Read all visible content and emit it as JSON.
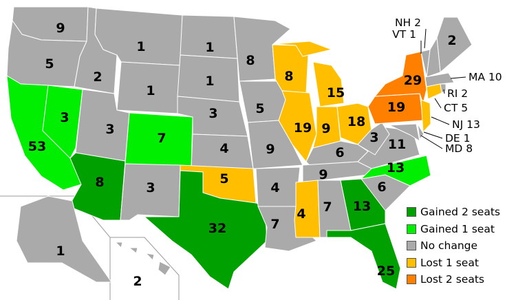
{
  "colors": {
    "gained2": "#00a000",
    "gained1": "#00ee00",
    "nochange": "#aaaaaa",
    "lost1": "#ffbf00",
    "lost2": "#ff8000"
  },
  "legend": [
    {
      "key": "gained2",
      "label": "Gained 2 seats"
    },
    {
      "key": "gained1",
      "label": "Gained 1 seat"
    },
    {
      "key": "nochange",
      "label": "No change"
    },
    {
      "key": "lost1",
      "label": "Lost 1 seat"
    },
    {
      "key": "lost2",
      "label": "Lost 2 seats"
    }
  ],
  "states": [
    {
      "id": "WA",
      "seats": "9",
      "change": "nochange"
    },
    {
      "id": "OR",
      "seats": "5",
      "change": "nochange"
    },
    {
      "id": "CA",
      "seats": "53",
      "change": "gained1"
    },
    {
      "id": "NV",
      "seats": "3",
      "change": "gained1"
    },
    {
      "id": "ID",
      "seats": "2",
      "change": "nochange"
    },
    {
      "id": "MT",
      "seats": "1",
      "change": "nochange"
    },
    {
      "id": "WY",
      "seats": "1",
      "change": "nochange"
    },
    {
      "id": "UT",
      "seats": "3",
      "change": "nochange"
    },
    {
      "id": "CO",
      "seats": "7",
      "change": "gained1"
    },
    {
      "id": "AZ",
      "seats": "8",
      "change": "gained2"
    },
    {
      "id": "NM",
      "seats": "3",
      "change": "nochange"
    },
    {
      "id": "ND",
      "seats": "1",
      "change": "nochange"
    },
    {
      "id": "SD",
      "seats": "1",
      "change": "nochange"
    },
    {
      "id": "NE",
      "seats": "3",
      "change": "nochange"
    },
    {
      "id": "KS",
      "seats": "4",
      "change": "nochange"
    },
    {
      "id": "OK",
      "seats": "5",
      "change": "lost1"
    },
    {
      "id": "TX",
      "seats": "32",
      "change": "gained2"
    },
    {
      "id": "MN",
      "seats": "8",
      "change": "nochange"
    },
    {
      "id": "IA",
      "seats": "5",
      "change": "nochange"
    },
    {
      "id": "MO",
      "seats": "9",
      "change": "nochange"
    },
    {
      "id": "AR",
      "seats": "4",
      "change": "nochange"
    },
    {
      "id": "LA",
      "seats": "7",
      "change": "nochange"
    },
    {
      "id": "WI",
      "seats": "8",
      "change": "lost1"
    },
    {
      "id": "IL",
      "seats": "19",
      "change": "lost1"
    },
    {
      "id": "MI",
      "seats": "15",
      "change": "lost1"
    },
    {
      "id": "IN",
      "seats": "9",
      "change": "lost1"
    },
    {
      "id": "OH",
      "seats": "18",
      "change": "lost1"
    },
    {
      "id": "KY",
      "seats": "6",
      "change": "nochange"
    },
    {
      "id": "TN",
      "seats": "9",
      "change": "nochange"
    },
    {
      "id": "MS",
      "seats": "4",
      "change": "lost1"
    },
    {
      "id": "AL",
      "seats": "7",
      "change": "nochange"
    },
    {
      "id": "GA",
      "seats": "13",
      "change": "gained2"
    },
    {
      "id": "FL",
      "seats": "25",
      "change": "gained2"
    },
    {
      "id": "SC",
      "seats": "6",
      "change": "nochange"
    },
    {
      "id": "NC",
      "seats": "13",
      "change": "gained1"
    },
    {
      "id": "VA",
      "seats": "11",
      "change": "nochange"
    },
    {
      "id": "WV",
      "seats": "3",
      "change": "nochange"
    },
    {
      "id": "PA",
      "seats": "19",
      "change": "lost2"
    },
    {
      "id": "NY",
      "seats": "29",
      "change": "lost2"
    },
    {
      "id": "ME",
      "seats": "2",
      "change": "nochange"
    },
    {
      "id": "AK",
      "seats": "1",
      "change": "nochange"
    },
    {
      "id": "HI",
      "seats": "2",
      "change": "nochange"
    },
    {
      "id": "NH",
      "seats": "2",
      "change": "nochange",
      "callout": "NH 2"
    },
    {
      "id": "VT",
      "seats": "1",
      "change": "nochange",
      "callout": "VT 1"
    },
    {
      "id": "MA",
      "seats": "10",
      "change": "nochange",
      "callout": "MA 10"
    },
    {
      "id": "RI",
      "seats": "2",
      "change": "nochange",
      "callout": "RI 2"
    },
    {
      "id": "CT",
      "seats": "5",
      "change": "lost1",
      "callout": "CT 5"
    },
    {
      "id": "NJ",
      "seats": "13",
      "change": "lost1",
      "callout": "NJ 13"
    },
    {
      "id": "DE",
      "seats": "1",
      "change": "nochange",
      "callout": "DE 1"
    },
    {
      "id": "MD",
      "seats": "8",
      "change": "nochange",
      "callout": "MD 8"
    }
  ]
}
